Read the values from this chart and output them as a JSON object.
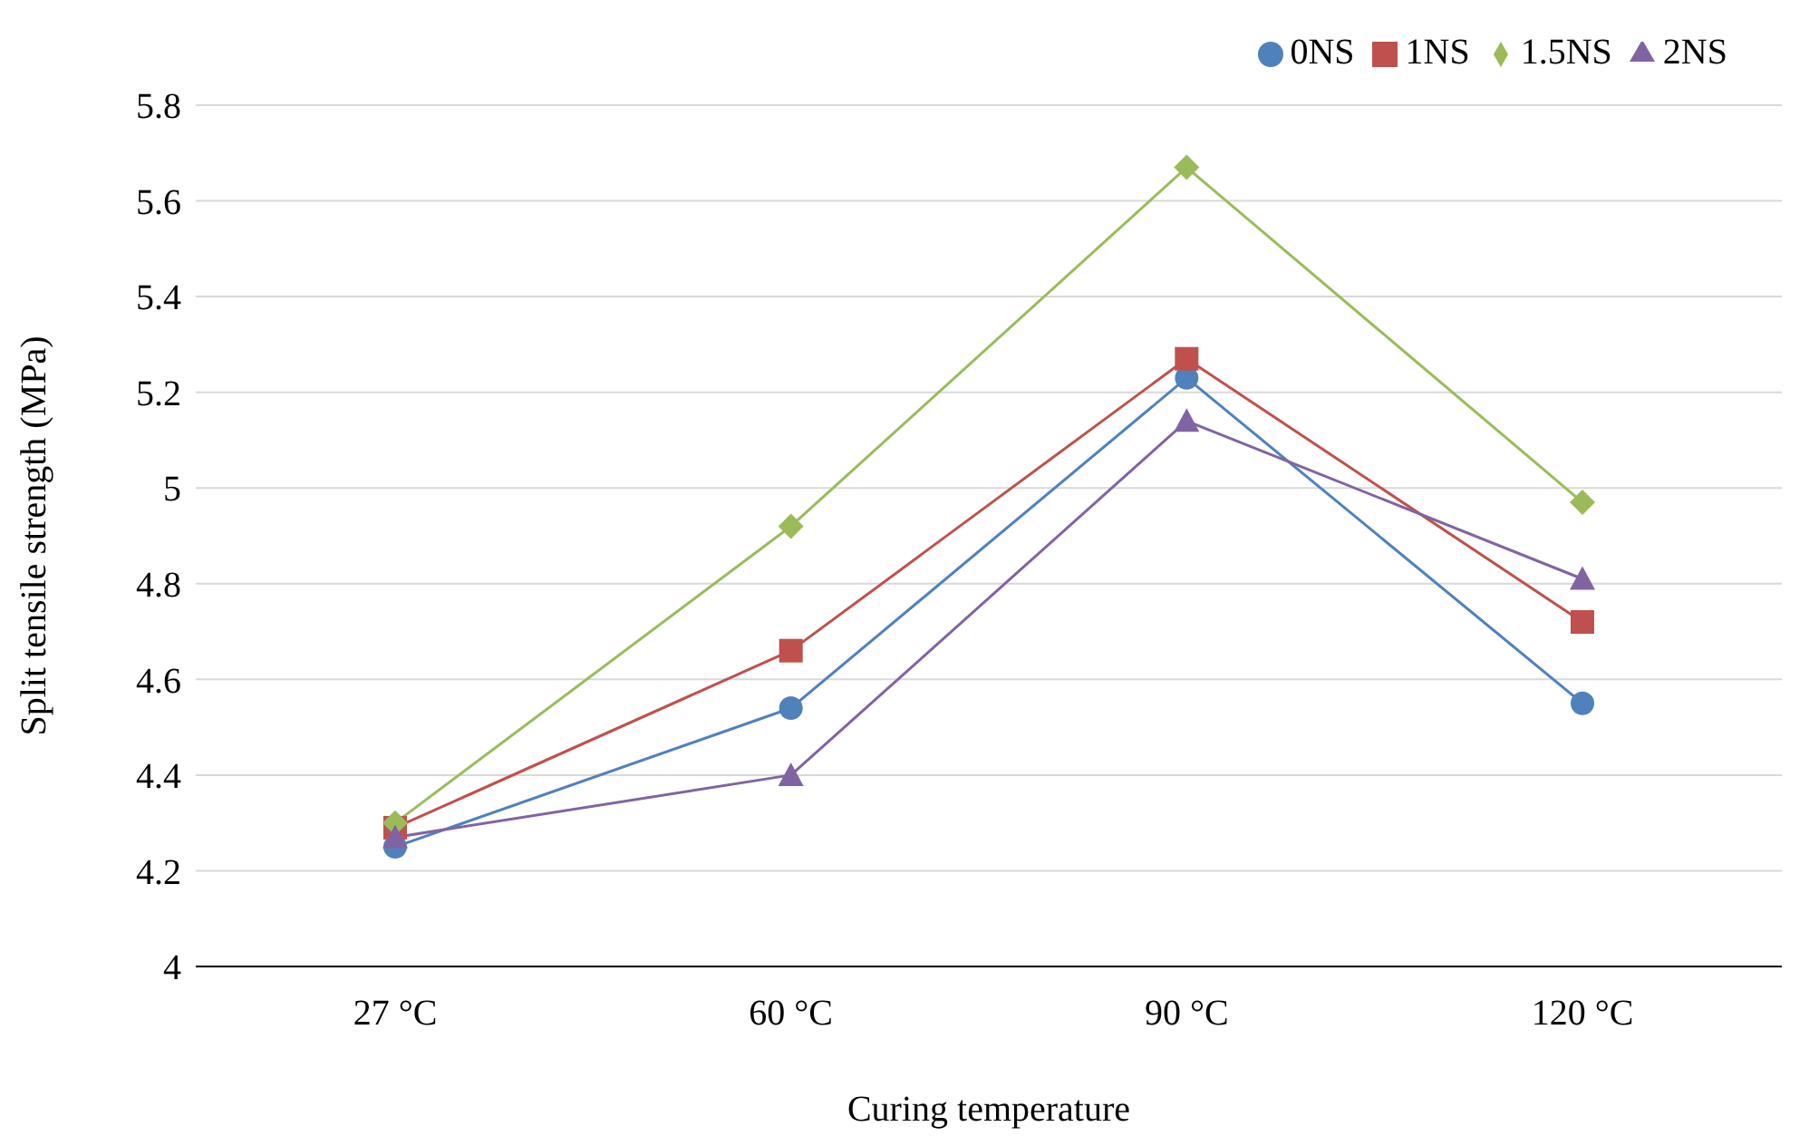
{
  "chart_data": {
    "type": "line",
    "xlabel": "Curing temperature",
    "ylabel": "Split tensile strength (MPa)",
    "categories": [
      "27 °C",
      "60 °C",
      "90 °C",
      "120 °C"
    ],
    "series": [
      {
        "name": "0NS",
        "color": "#4f81bd",
        "marker": "circle",
        "values": [
          4.25,
          4.54,
          5.23,
          4.55
        ]
      },
      {
        "name": "1NS",
        "color": "#c0504d",
        "marker": "square",
        "values": [
          4.29,
          4.66,
          5.27,
          4.72
        ]
      },
      {
        "name": "1.5NS",
        "color": "#9bbb59",
        "marker": "diamond",
        "values": [
          4.3,
          4.92,
          5.67,
          4.97
        ]
      },
      {
        "name": "2NS",
        "color": "#8064a2",
        "marker": "triangle",
        "values": [
          4.27,
          4.4,
          5.14,
          4.81
        ]
      }
    ],
    "ylim": [
      4,
      5.8
    ],
    "yticks": [
      4,
      4.2,
      4.4,
      4.6,
      4.8,
      5,
      5.2,
      5.4,
      5.6,
      5.8
    ],
    "grid": "y",
    "legend": "top right",
    "line_style": "solid"
  }
}
